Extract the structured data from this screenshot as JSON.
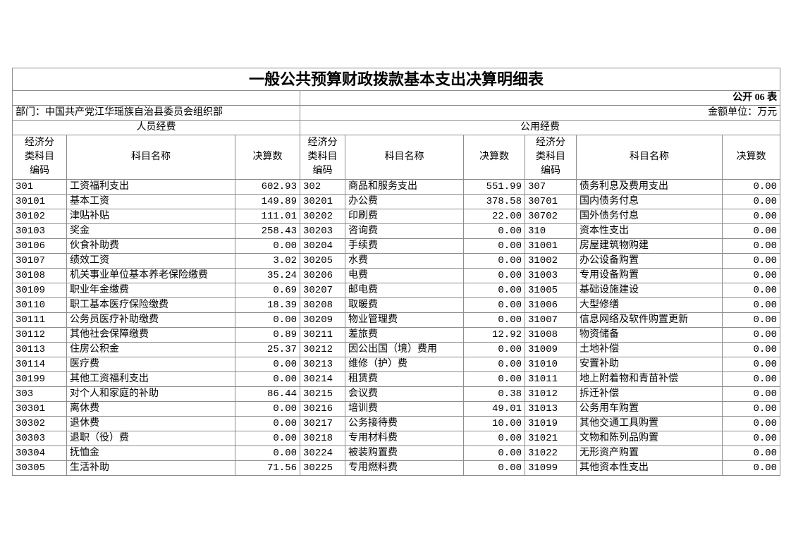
{
  "title": "一般公共预算财政拨款基本支出决算明细表",
  "table_number": "公开 06 表",
  "department": "部门：中国共产党江华瑶族自治县委员会组织部",
  "unit": "金额单位：万元",
  "groups": [
    "人员经费",
    "公用经费"
  ],
  "headers": [
    "经济分类科目编码",
    "科目名称",
    "决算数",
    "经济分类科目编码",
    "科目名称",
    "决算数",
    "经济分类科目编码",
    "科目名称",
    "决算数"
  ],
  "rows": [
    [
      "301",
      "工资福利支出",
      "602.93",
      "302",
      "商品和服务支出",
      "551.99",
      "307",
      "债务利息及费用支出",
      "0.00"
    ],
    [
      "30101",
      "基本工资",
      "149.89",
      "30201",
      "办公费",
      "378.58",
      "30701",
      "国内债务付息",
      "0.00"
    ],
    [
      "30102",
      "津贴补贴",
      "111.01",
      "30202",
      "印刷费",
      "22.00",
      "30702",
      "国外债务付息",
      "0.00"
    ],
    [
      "30103",
      "奖金",
      "258.43",
      "30203",
      "咨询费",
      "0.00",
      "310",
      "资本性支出",
      "0.00"
    ],
    [
      "30106",
      "伙食补助费",
      "0.00",
      "30204",
      "手续费",
      "0.00",
      "31001",
      "房屋建筑物购建",
      "0.00"
    ],
    [
      "30107",
      "绩效工资",
      "3.02",
      "30205",
      "水费",
      "0.00",
      "31002",
      "办公设备购置",
      "0.00"
    ],
    [
      "30108",
      "机关事业单位基本养老保险缴费",
      "35.24",
      "30206",
      "电费",
      "0.00",
      "31003",
      "专用设备购置",
      "0.00"
    ],
    [
      "30109",
      "职业年金缴费",
      "0.69",
      "30207",
      "邮电费",
      "0.00",
      "31005",
      "基础设施建设",
      "0.00"
    ],
    [
      "30110",
      "职工基本医疗保险缴费",
      "18.39",
      "30208",
      "取暖费",
      "0.00",
      "31006",
      "大型修缮",
      "0.00"
    ],
    [
      "30111",
      "公务员医疗补助缴费",
      "0.00",
      "30209",
      "物业管理费",
      "0.00",
      "31007",
      "信息网络及软件购置更新",
      "0.00"
    ],
    [
      "30112",
      "其他社会保障缴费",
      "0.89",
      "30211",
      "差旅费",
      "12.92",
      "31008",
      "物资储备",
      "0.00"
    ],
    [
      "30113",
      "住房公积金",
      "25.37",
      "30212",
      "因公出国（境）费用",
      "0.00",
      "31009",
      "土地补偿",
      "0.00"
    ],
    [
      "30114",
      "医疗费",
      "0.00",
      "30213",
      "维修（护）费",
      "0.00",
      "31010",
      "安置补助",
      "0.00"
    ],
    [
      "30199",
      "其他工资福利支出",
      "0.00",
      "30214",
      "租赁费",
      "0.00",
      "31011",
      "地上附着物和青苗补偿",
      "0.00"
    ],
    [
      "303",
      "对个人和家庭的补助",
      "86.44",
      "30215",
      "会议费",
      "0.38",
      "31012",
      "拆迁补偿",
      "0.00"
    ],
    [
      "30301",
      "离休费",
      "0.00",
      "30216",
      "培训费",
      "49.01",
      "31013",
      "公务用车购置",
      "0.00"
    ],
    [
      "30302",
      "退休费",
      "0.00",
      "30217",
      "公务接待费",
      "10.00",
      "31019",
      "其他交通工具购置",
      "0.00"
    ],
    [
      "30303",
      "退职（役）费",
      "0.00",
      "30218",
      "专用材料费",
      "0.00",
      "31021",
      "文物和陈列品购置",
      "0.00"
    ],
    [
      "30304",
      "抚恤金",
      "0.00",
      "30224",
      "被装购置费",
      "0.00",
      "31022",
      "无形资产购置",
      "0.00"
    ],
    [
      "30305",
      "生活补助",
      "71.56",
      "30225",
      "专用燃料费",
      "0.00",
      "31099",
      "其他资本性支出",
      "0.00"
    ]
  ]
}
